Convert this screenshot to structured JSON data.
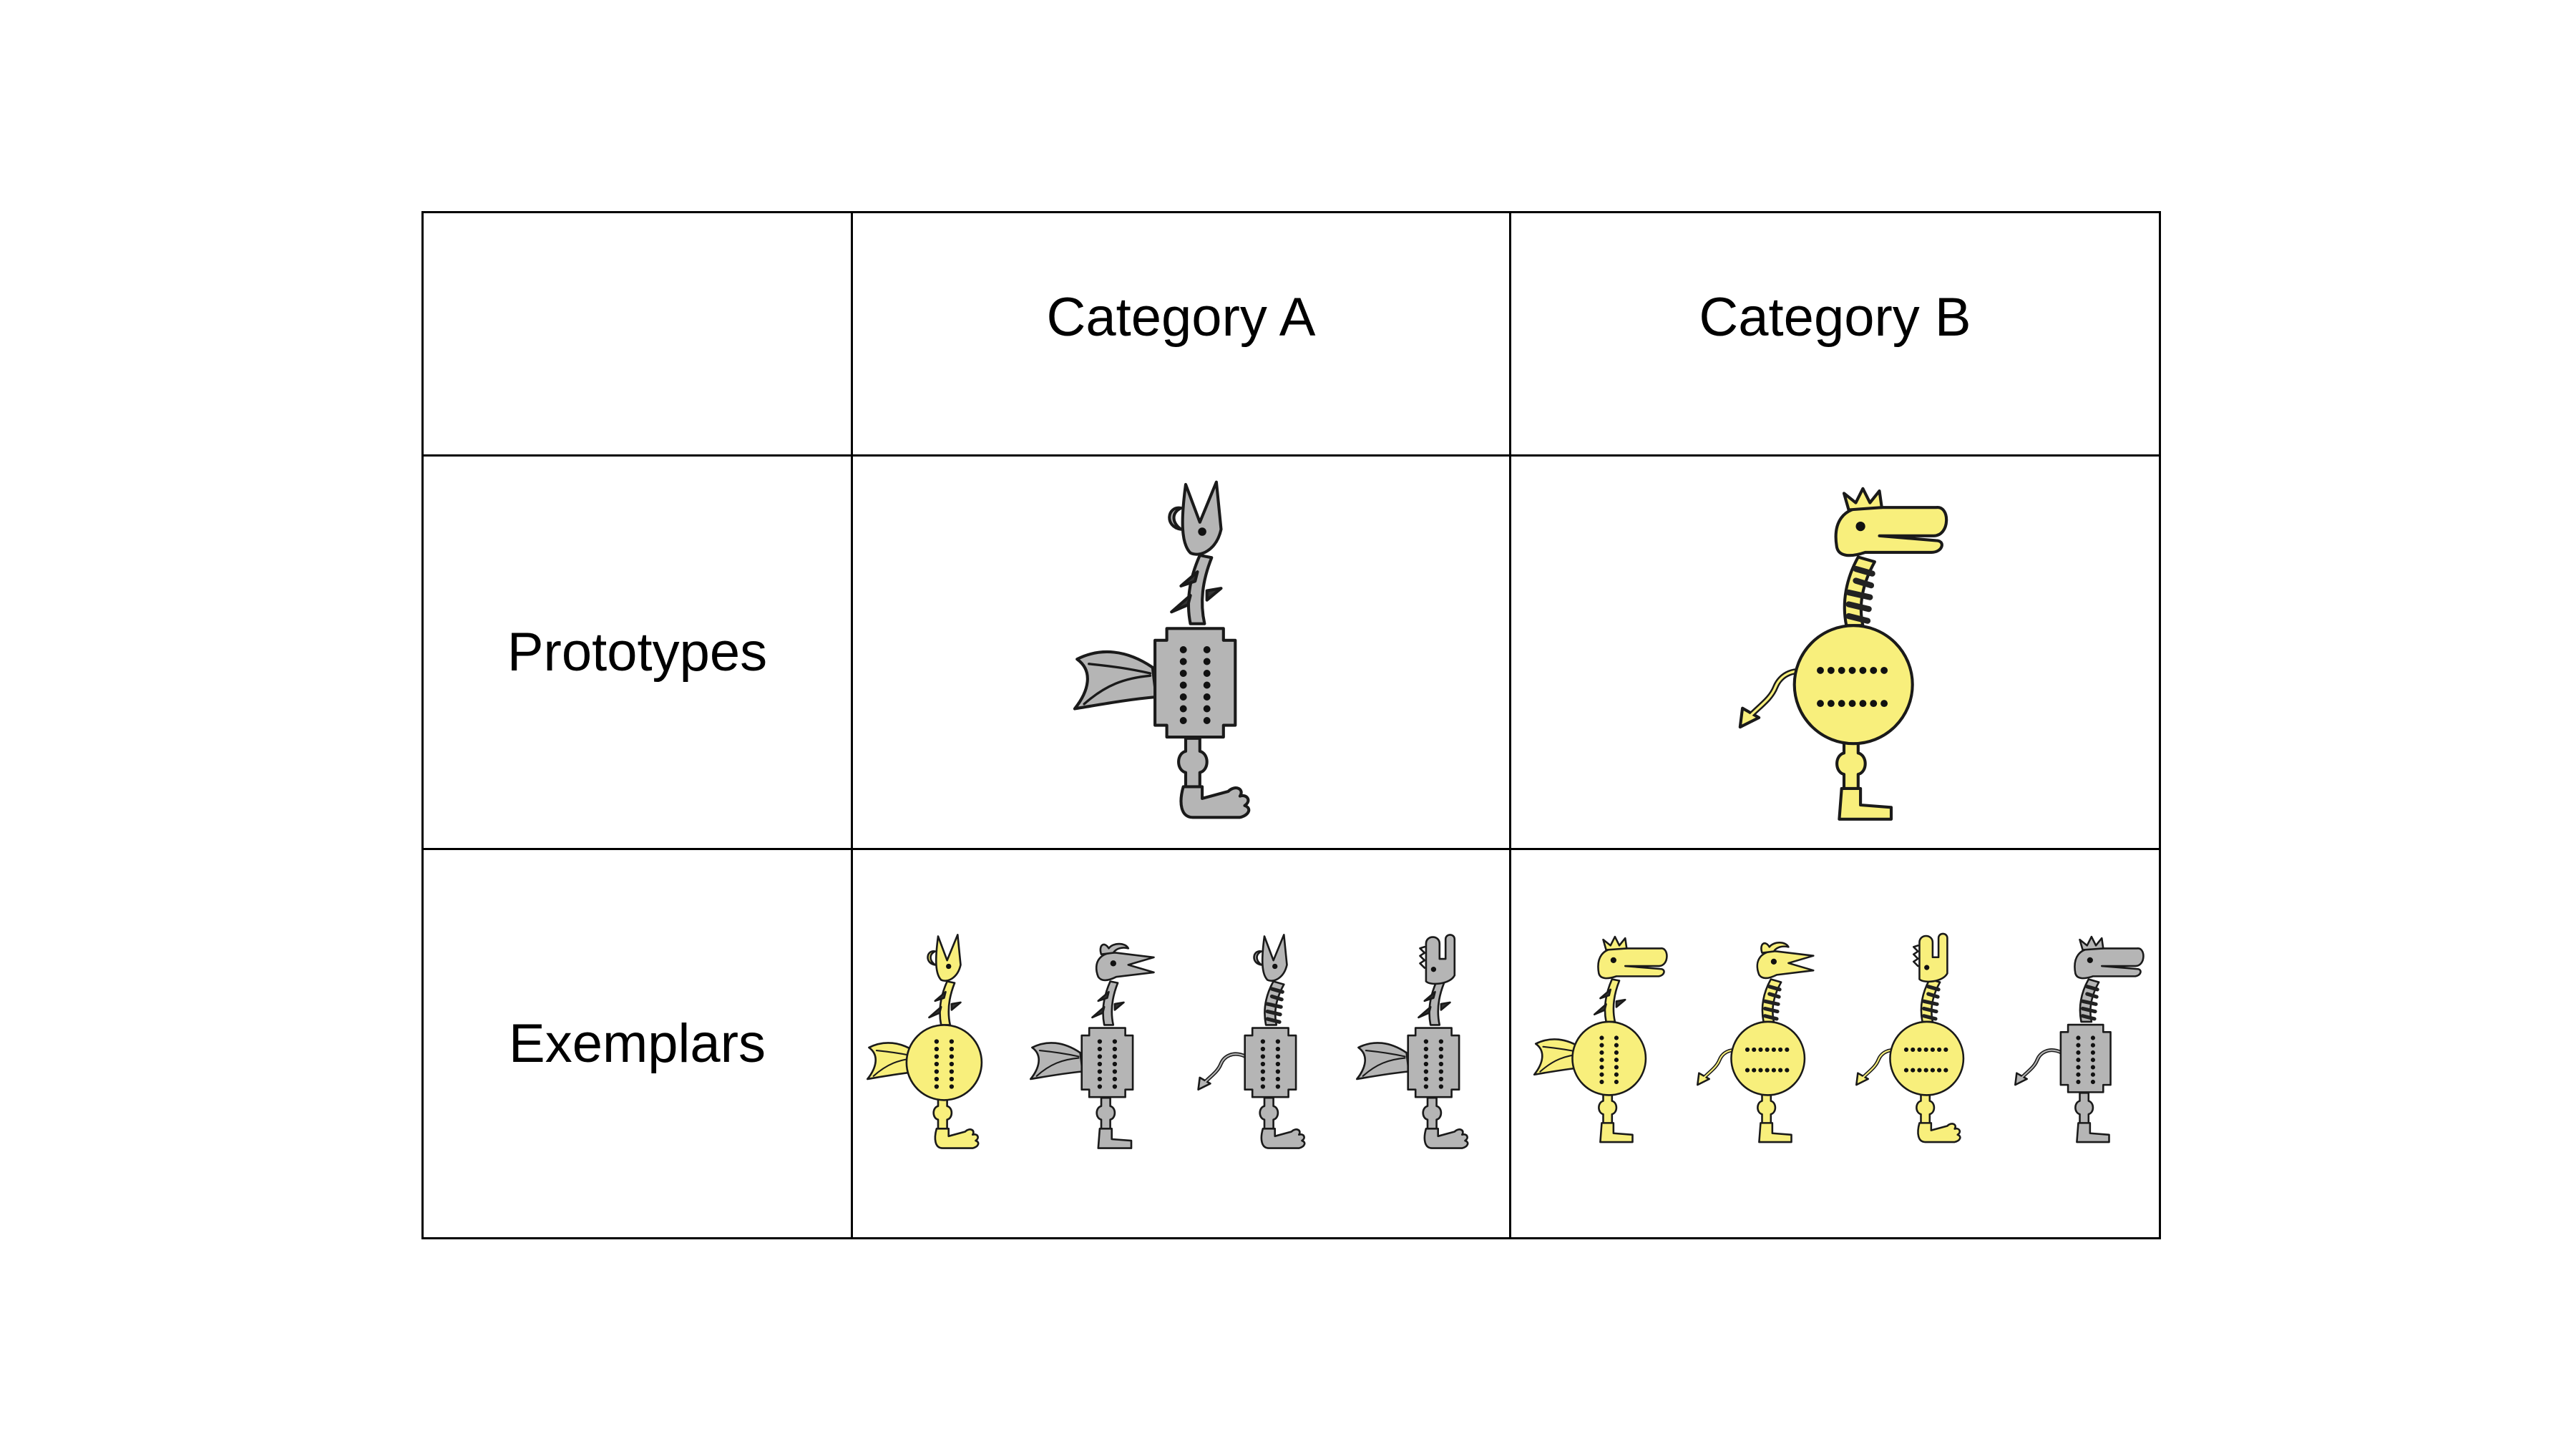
{
  "table": {
    "columns": [
      "Category A",
      "Category B"
    ],
    "rows": [
      "Prototypes",
      "Exemplars"
    ]
  },
  "colors": {
    "yellow": "#f8ef7c",
    "gray": "#b5b5b5",
    "outline": "#1a1a1a",
    "grid": "#000000"
  },
  "creatures": {
    "prototype_a": {
      "body": "square",
      "color": "gray",
      "head": "v-horns",
      "tail": "fin",
      "neck": "spiky",
      "legs": "foot"
    },
    "prototype_b": {
      "body": "round",
      "color": "yellow",
      "head": "crown-beak",
      "tail": "arrow",
      "neck": "striped",
      "legs": "boot"
    },
    "exemplars_a": [
      {
        "body": "round",
        "color": "yellow",
        "head": "v-horns",
        "tail": "fin",
        "neck": "spiky",
        "legs": "foot"
      },
      {
        "body": "square",
        "color": "gray",
        "head": "horn-beak",
        "tail": "fin",
        "neck": "spiky",
        "legs": "boot"
      },
      {
        "body": "square",
        "color": "gray",
        "head": "v-horns",
        "tail": "arrow",
        "neck": "striped",
        "legs": "foot"
      },
      {
        "body": "square",
        "color": "gray",
        "head": "comb",
        "tail": "fin",
        "neck": "spiky",
        "legs": "foot"
      }
    ],
    "exemplars_b": [
      {
        "body": "round",
        "color": "yellow",
        "head": "crown-beak",
        "tail": "fin",
        "neck": "spiky",
        "legs": "boot"
      },
      {
        "body": "round",
        "color": "yellow",
        "head": "horn-beak",
        "tail": "arrow",
        "neck": "striped",
        "legs": "boot"
      },
      {
        "body": "round",
        "color": "yellow",
        "head": "comb",
        "tail": "arrow",
        "neck": "striped",
        "legs": "foot"
      },
      {
        "body": "square",
        "color": "gray",
        "head": "crown-beak",
        "tail": "arrow",
        "neck": "striped",
        "legs": "boot"
      }
    ]
  }
}
